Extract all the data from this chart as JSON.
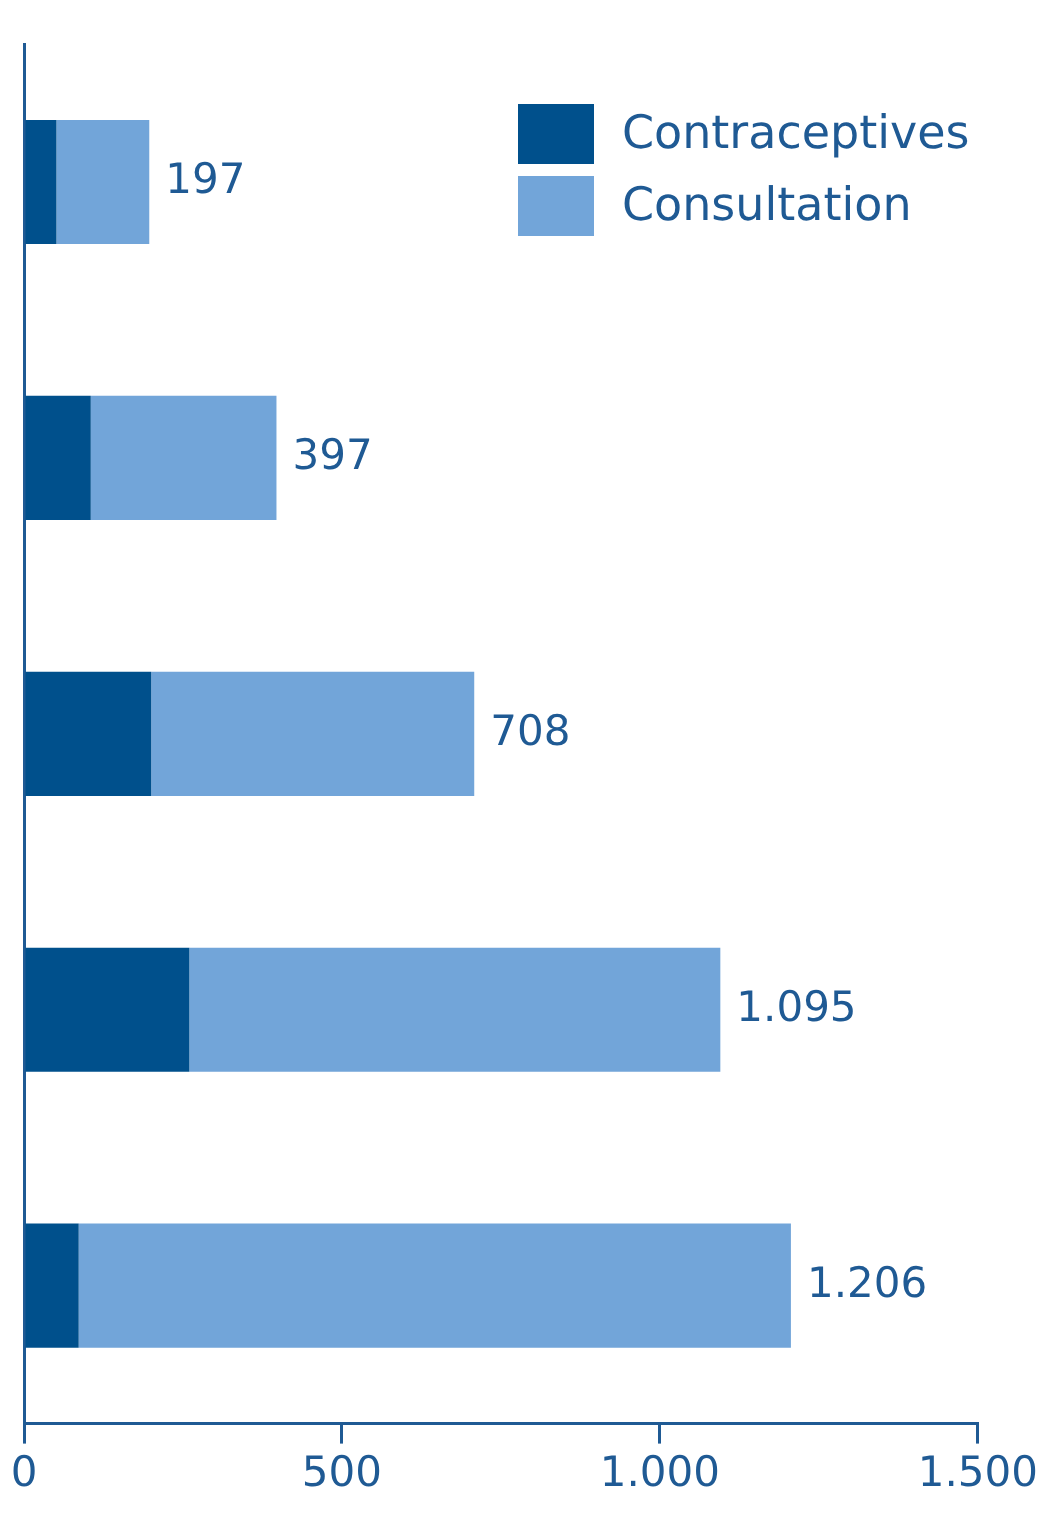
{
  "chart_data": {
    "type": "bar",
    "orientation": "horizontal",
    "stacked": true,
    "categories": [
      null,
      null,
      null,
      null,
      null
    ],
    "series": [
      {
        "name": "Contraceptives",
        "color": "#00508c",
        "values": [
          51,
          105,
          200,
          260,
          86
        ]
      },
      {
        "name": "Consultation",
        "color": "#72a5d9",
        "values": [
          146,
          292,
          508,
          835,
          1120
        ]
      }
    ],
    "totals": [
      "197",
      "397",
      "708",
      "1.095",
      "1.206"
    ],
    "xlim": [
      0,
      1500
    ],
    "xticks": [
      0,
      500,
      {
        "value": 1000,
        "label": "1.000"
      },
      {
        "value": 1500,
        "label": "1.500"
      }
    ],
    "grid": false,
    "legend": "top right"
  }
}
